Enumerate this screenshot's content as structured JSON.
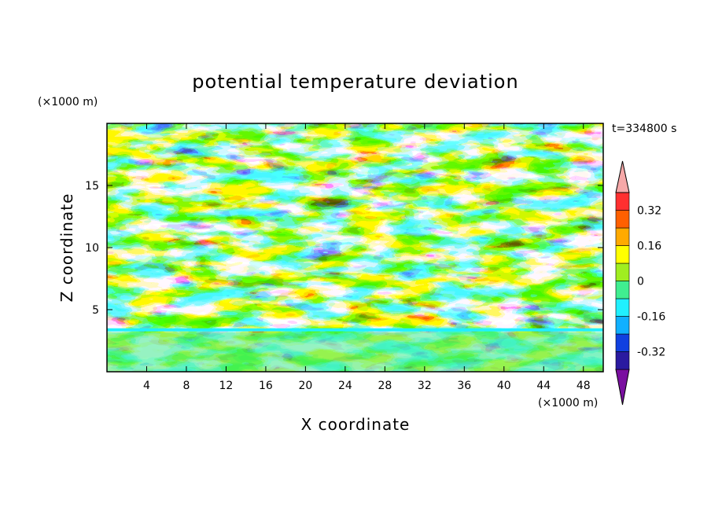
{
  "chart_data": {
    "type": "heatmap",
    "title": "potential temperature deviation",
    "xlabel": "X coordinate",
    "ylabel": "Z coordinate",
    "x_units": "(×1000 m)",
    "z_units": "(×1000 m)",
    "time_label": "t=334800 s",
    "xlim": [
      0,
      50
    ],
    "ylim": [
      0,
      20
    ],
    "x_ticks": [
      4,
      8,
      12,
      16,
      20,
      24,
      28,
      32,
      36,
      40,
      44,
      48
    ],
    "y_ticks": [
      5,
      10,
      15
    ],
    "colorbar": {
      "levels": [
        -0.4,
        -0.32,
        -0.24,
        -0.16,
        -0.08,
        0,
        0.08,
        0.16,
        0.24,
        0.32,
        0.4
      ],
      "labels": [
        "0.32",
        "0.16",
        "0",
        "-0.16",
        "-0.32"
      ],
      "label_values": [
        0.32,
        0.16,
        0,
        -0.16,
        -0.32
      ],
      "extend": "both",
      "colors": [
        "#7a0fa0",
        "#2a1aa0",
        "#1040e0",
        "#10b0ff",
        "#20f0ff",
        "#40ee90",
        "#a0ee20",
        "#ffff00",
        "#ffaa00",
        "#ff6000",
        "#ff3030",
        "#f6a8a8"
      ]
    }
  }
}
